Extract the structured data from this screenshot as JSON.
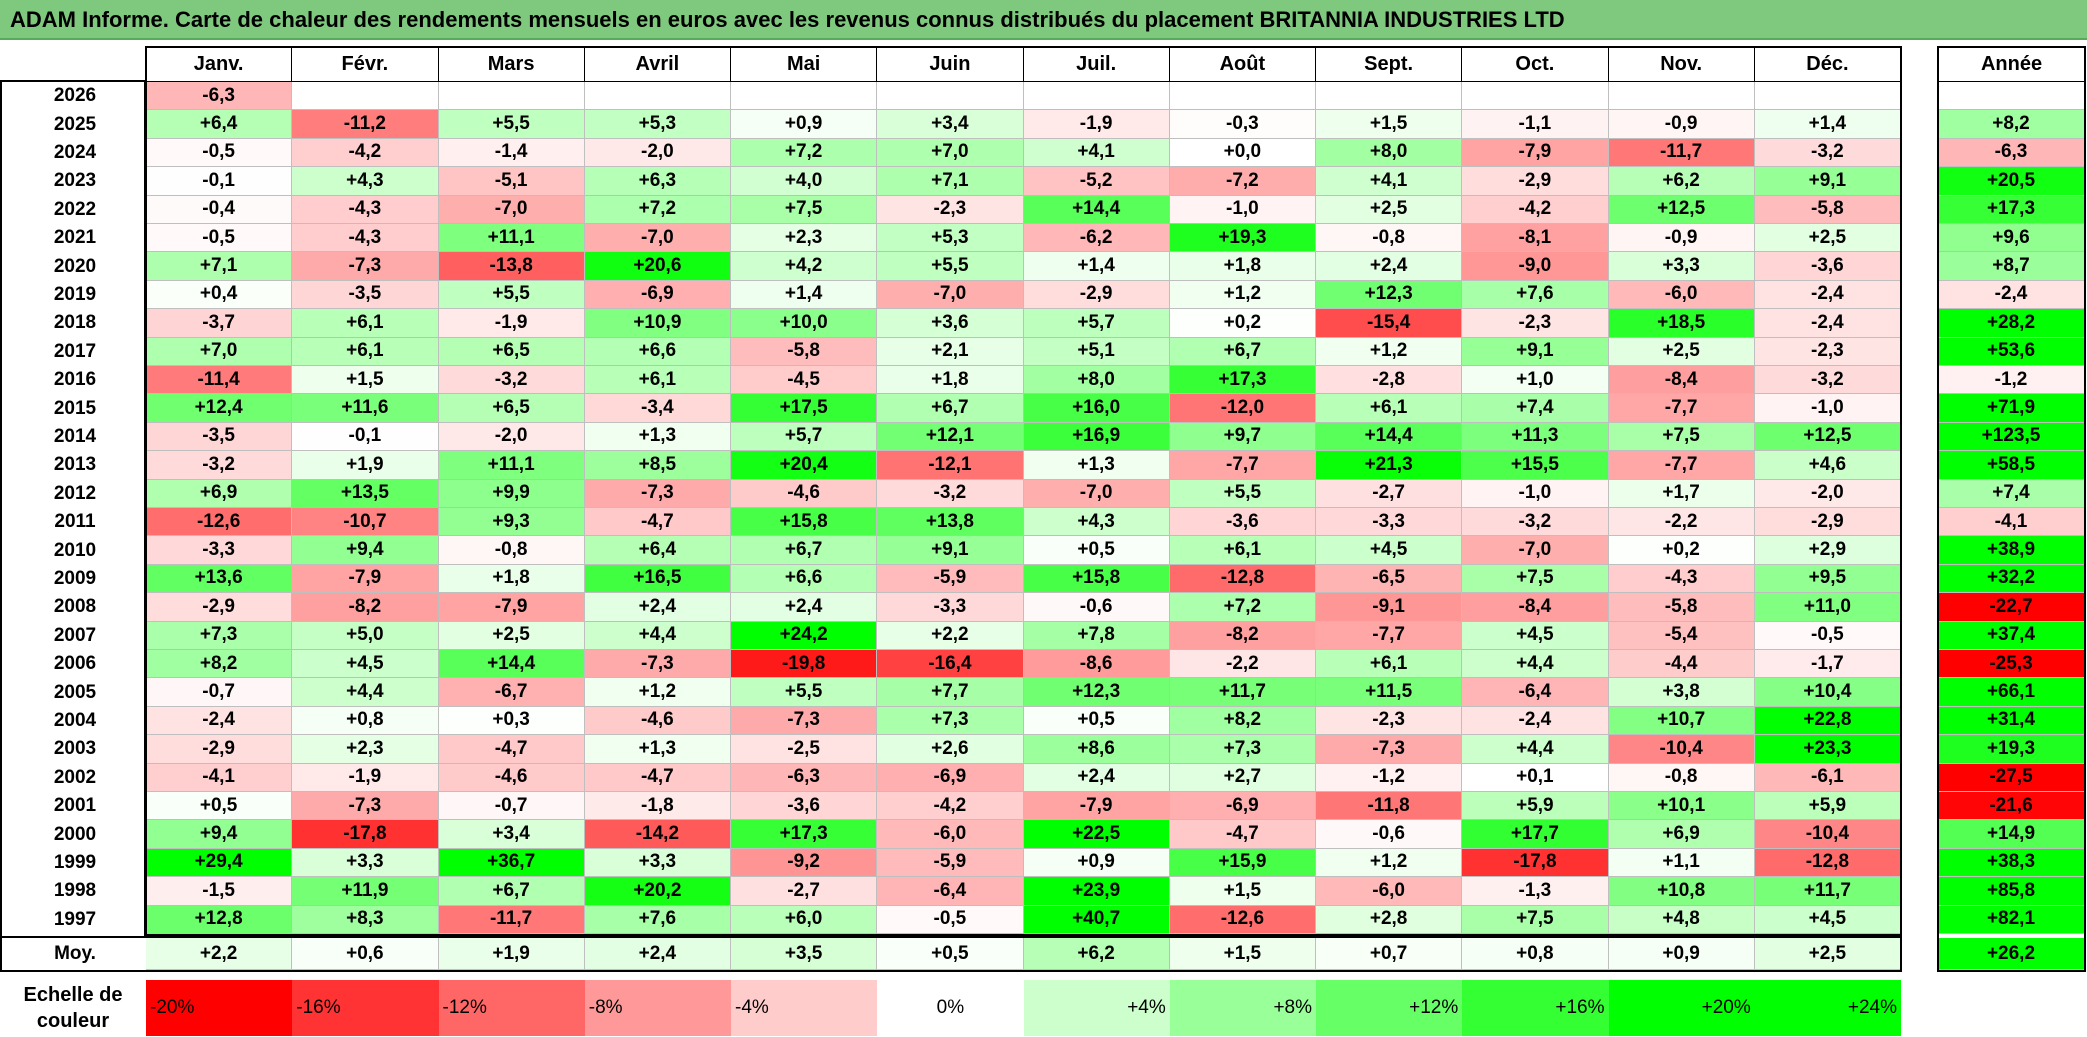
{
  "title": "ADAM Informe. Carte de chaleur des rendements mensuels en euros avec les revenus connus distribués du placement BRITANNIA INDUSTRIES LTD",
  "colors": {
    "title_bg": "#7fc97f",
    "negative": "#ff0000",
    "positive": "#00ff00",
    "neutral": "#ffffff"
  },
  "chart_data": {
    "type": "heatmap",
    "title": "ADAM Informe. Carte de chaleur des rendements mensuels en euros avec les revenus connus distribués du placement BRITANNIA INDUSTRIES LTD",
    "months": [
      "Janv.",
      "Févr.",
      "Mars",
      "Avril",
      "Mai",
      "Juin",
      "Juil.",
      "Août",
      "Sept.",
      "Oct.",
      "Nov.",
      "Déc."
    ],
    "year_header": "Année",
    "rows": [
      {
        "year": "2026",
        "values": [
          "-6,3",
          "",
          "",
          "",
          "",
          "",
          "",
          "",
          "",
          "",
          "",
          ""
        ],
        "annual": ""
      },
      {
        "year": "2025",
        "values": [
          "+6,4",
          "-11,2",
          "+5,5",
          "+5,3",
          "+0,9",
          "+3,4",
          "-1,9",
          "-0,3",
          "+1,5",
          "-1,1",
          "-0,9",
          "+1,4"
        ],
        "annual": "+8,2"
      },
      {
        "year": "2024",
        "values": [
          "-0,5",
          "-4,2",
          "-1,4",
          "-2,0",
          "+7,2",
          "+7,0",
          "+4,1",
          "+0,0",
          "+8,0",
          "-7,9",
          "-11,7",
          "-3,2"
        ],
        "annual": "-6,3"
      },
      {
        "year": "2023",
        "values": [
          "-0,1",
          "+4,3",
          "-5,1",
          "+6,3",
          "+4,0",
          "+7,1",
          "-5,2",
          "-7,2",
          "+4,1",
          "-2,9",
          "+6,2",
          "+9,1"
        ],
        "annual": "+20,5"
      },
      {
        "year": "2022",
        "values": [
          "-0,4",
          "-4,3",
          "-7,0",
          "+7,2",
          "+7,5",
          "-2,3",
          "+14,4",
          "-1,0",
          "+2,5",
          "-4,2",
          "+12,5",
          "-5,8"
        ],
        "annual": "+17,3"
      },
      {
        "year": "2021",
        "values": [
          "-0,5",
          "-4,3",
          "+11,1",
          "-7,0",
          "+2,3",
          "+5,3",
          "-6,2",
          "+19,3",
          "-0,8",
          "-8,1",
          "-0,9",
          "+2,5"
        ],
        "annual": "+9,6"
      },
      {
        "year": "2020",
        "values": [
          "+7,1",
          "-7,3",
          "-13,8",
          "+20,6",
          "+4,2",
          "+5,5",
          "+1,4",
          "+1,8",
          "+2,4",
          "-9,0",
          "+3,3",
          "-3,6"
        ],
        "annual": "+8,7"
      },
      {
        "year": "2019",
        "values": [
          "+0,4",
          "-3,5",
          "+5,5",
          "-6,9",
          "+1,4",
          "-7,0",
          "-2,9",
          "+1,2",
          "+12,3",
          "+7,6",
          "-6,0",
          "-2,4"
        ],
        "annual": "-2,4"
      },
      {
        "year": "2018",
        "values": [
          "-3,7",
          "+6,1",
          "-1,9",
          "+10,9",
          "+10,0",
          "+3,6",
          "+5,7",
          "+0,2",
          "-15,4",
          "-2,3",
          "+18,5",
          "-2,4"
        ],
        "annual": "+28,2"
      },
      {
        "year": "2017",
        "values": [
          "+7,0",
          "+6,1",
          "+6,5",
          "+6,6",
          "-5,8",
          "+2,1",
          "+5,1",
          "+6,7",
          "+1,2",
          "+9,1",
          "+2,5",
          "-2,3"
        ],
        "annual": "+53,6"
      },
      {
        "year": "2016",
        "values": [
          "-11,4",
          "+1,5",
          "-3,2",
          "+6,1",
          "-4,5",
          "+1,8",
          "+8,0",
          "+17,3",
          "-2,8",
          "+1,0",
          "-8,4",
          "-3,2"
        ],
        "annual": "-1,2"
      },
      {
        "year": "2015",
        "values": [
          "+12,4",
          "+11,6",
          "+6,5",
          "-3,4",
          "+17,5",
          "+6,7",
          "+16,0",
          "-12,0",
          "+6,1",
          "+7,4",
          "-7,7",
          "-1,0"
        ],
        "annual": "+71,9"
      },
      {
        "year": "2014",
        "values": [
          "-3,5",
          "-0,1",
          "-2,0",
          "+1,3",
          "+5,7",
          "+12,1",
          "+16,9",
          "+9,7",
          "+14,4",
          "+11,3",
          "+7,5",
          "+12,5"
        ],
        "annual": "+123,5"
      },
      {
        "year": "2013",
        "values": [
          "-3,2",
          "+1,9",
          "+11,1",
          "+8,5",
          "+20,4",
          "-12,1",
          "+1,3",
          "-7,7",
          "+21,3",
          "+15,5",
          "-7,7",
          "+4,6"
        ],
        "annual": "+58,5"
      },
      {
        "year": "2012",
        "values": [
          "+6,9",
          "+13,5",
          "+9,9",
          "-7,3",
          "-4,6",
          "-3,2",
          "-7,0",
          "+5,5",
          "-2,7",
          "-1,0",
          "+1,7",
          "-2,0"
        ],
        "annual": "+7,4"
      },
      {
        "year": "2011",
        "values": [
          "-12,6",
          "-10,7",
          "+9,3",
          "-4,7",
          "+15,8",
          "+13,8",
          "+4,3",
          "-3,6",
          "-3,3",
          "-3,2",
          "-2,2",
          "-2,9"
        ],
        "annual": "-4,1"
      },
      {
        "year": "2010",
        "values": [
          "-3,3",
          "+9,4",
          "-0,8",
          "+6,4",
          "+6,7",
          "+9,1",
          "+0,5",
          "+6,1",
          "+4,5",
          "-7,0",
          "+0,2",
          "+2,9"
        ],
        "annual": "+38,9"
      },
      {
        "year": "2009",
        "values": [
          "+13,6",
          "-7,9",
          "+1,8",
          "+16,5",
          "+6,6",
          "-5,9",
          "+15,8",
          "-12,8",
          "-6,5",
          "+7,5",
          "-4,3",
          "+9,5"
        ],
        "annual": "+32,2"
      },
      {
        "year": "2008",
        "values": [
          "-2,9",
          "-8,2",
          "-7,9",
          "+2,4",
          "+2,4",
          "-3,3",
          "-0,6",
          "+7,2",
          "-9,1",
          "-8,4",
          "-5,8",
          "+11,0"
        ],
        "annual": "-22,7"
      },
      {
        "year": "2007",
        "values": [
          "+7,3",
          "+5,0",
          "+2,5",
          "+4,4",
          "+24,2",
          "+2,2",
          "+7,8",
          "-8,2",
          "-7,7",
          "+4,5",
          "-5,4",
          "-0,5"
        ],
        "annual": "+37,4"
      },
      {
        "year": "2006",
        "values": [
          "+8,2",
          "+4,5",
          "+14,4",
          "-7,3",
          "-19,8",
          "-16,4",
          "-8,6",
          "-2,2",
          "+6,1",
          "+4,4",
          "-4,4",
          "-1,7"
        ],
        "annual": "-25,3"
      },
      {
        "year": "2005",
        "values": [
          "-0,7",
          "+4,4",
          "-6,7",
          "+1,2",
          "+5,5",
          "+7,7",
          "+12,3",
          "+11,7",
          "+11,5",
          "-6,4",
          "+3,8",
          "+10,4"
        ],
        "annual": "+66,1"
      },
      {
        "year": "2004",
        "values": [
          "-2,4",
          "+0,8",
          "+0,3",
          "-4,6",
          "-7,3",
          "+7,3",
          "+0,5",
          "+8,2",
          "-2,3",
          "-2,4",
          "+10,7",
          "+22,8"
        ],
        "annual": "+31,4"
      },
      {
        "year": "2003",
        "values": [
          "-2,9",
          "+2,3",
          "-4,7",
          "+1,3",
          "-2,5",
          "+2,6",
          "+8,6",
          "+7,3",
          "-7,3",
          "+4,4",
          "-10,4",
          "+23,3"
        ],
        "annual": "+19,3"
      },
      {
        "year": "2002",
        "values": [
          "-4,1",
          "-1,9",
          "-4,6",
          "-4,7",
          "-6,3",
          "-6,9",
          "+2,4",
          "+2,7",
          "-1,2",
          "+0,1",
          "-0,8",
          "-6,1"
        ],
        "annual": "-27,5"
      },
      {
        "year": "2001",
        "values": [
          "+0,5",
          "-7,3",
          "-0,7",
          "-1,8",
          "-3,6",
          "-4,2",
          "-7,9",
          "-6,9",
          "-11,8",
          "+5,9",
          "+10,1",
          "+5,9"
        ],
        "annual": "-21,6"
      },
      {
        "year": "2000",
        "values": [
          "+9,4",
          "-17,8",
          "+3,4",
          "-14,2",
          "+17,3",
          "-6,0",
          "+22,5",
          "-4,7",
          "-0,6",
          "+17,7",
          "+6,9",
          "-10,4"
        ],
        "annual": "+14,9"
      },
      {
        "year": "1999",
        "values": [
          "+29,4",
          "+3,3",
          "+36,7",
          "+3,3",
          "-9,2",
          "-5,9",
          "+0,9",
          "+15,9",
          "+1,2",
          "-17,8",
          "+1,1",
          "-12,8"
        ],
        "annual": "+38,3"
      },
      {
        "year": "1998",
        "values": [
          "-1,5",
          "+11,9",
          "+6,7",
          "+20,2",
          "-2,7",
          "-6,4",
          "+23,9",
          "+1,5",
          "-6,0",
          "-1,3",
          "+10,8",
          "+11,7"
        ],
        "annual": "+85,8"
      },
      {
        "year": "1997",
        "values": [
          "+12,8",
          "+8,3",
          "-11,7",
          "+7,6",
          "+6,0",
          "-0,5",
          "+40,7",
          "-12,6",
          "+2,8",
          "+7,5",
          "+4,8",
          "+4,5"
        ],
        "annual": "+82,1"
      }
    ],
    "average": {
      "label": "Moy.",
      "values": [
        "+2,2",
        "+0,6",
        "+1,9",
        "+2,4",
        "+3,5",
        "+0,5",
        "+6,2",
        "+1,5",
        "+0,7",
        "+0,8",
        "+0,9",
        "+2,5"
      ],
      "annual": "+26,2"
    },
    "color_scale": {
      "label_line1": "Echelle de",
      "label_line2": "couleur",
      "stops": [
        "-20%",
        "-16%",
        "-12%",
        "-8%",
        "-4%",
        "0%",
        "+4%",
        "+8%",
        "+12%",
        "+16%",
        "+20%",
        "+24%"
      ],
      "stop_values": [
        -20,
        -16,
        -12,
        -8,
        -4,
        0,
        4,
        8,
        12,
        16,
        20,
        24
      ]
    }
  }
}
